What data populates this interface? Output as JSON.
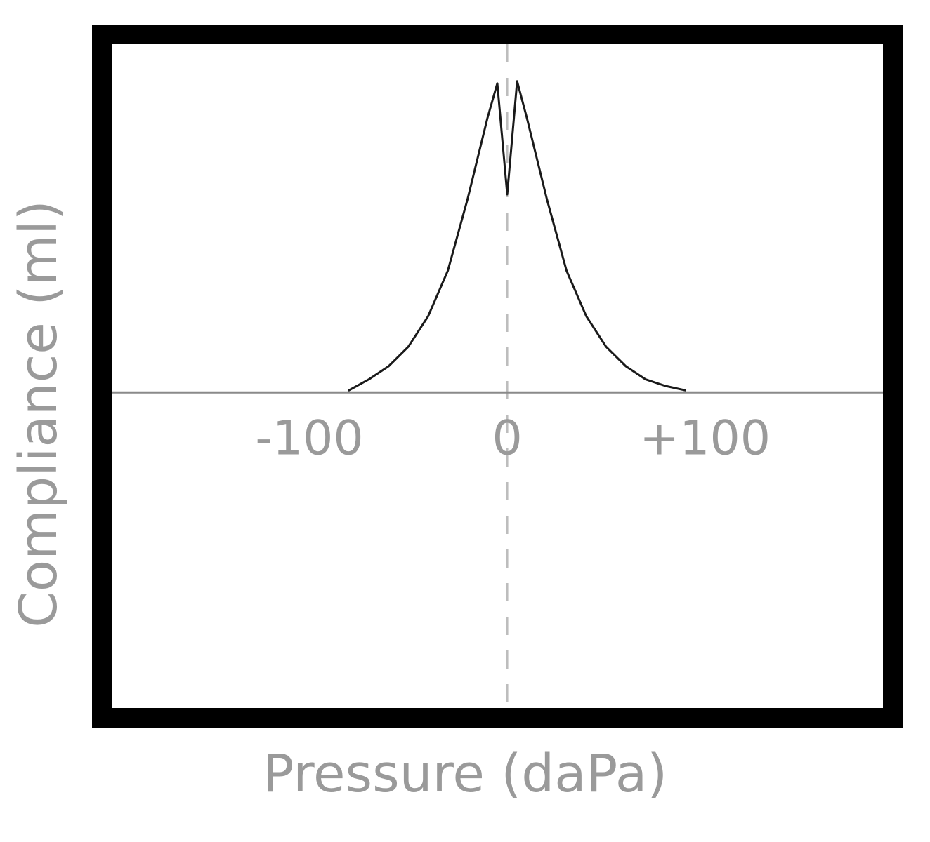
{
  "chart_data": {
    "type": "line",
    "title": "",
    "xlabel": "Pressure (daPa)",
    "ylabel": "Compliance (ml)",
    "xlim": [
      -200,
      190
    ],
    "ylim": [
      -1.45,
      1.6
    ],
    "x_ticks": [
      {
        "value": -100,
        "label": "-100"
      },
      {
        "value": 0,
        "label": "0"
      },
      {
        "value": 100,
        "label": "+100"
      }
    ],
    "reference_line": {
      "x": 0,
      "style": "dashed"
    },
    "baseline": {
      "y": 0
    },
    "grid": false,
    "legend": "none",
    "series": [
      {
        "color": "#1a1a1a",
        "x": [
          -80,
          -70,
          -60,
          -50,
          -40,
          -30,
          -20,
          -10,
          -5,
          0,
          5,
          10,
          20,
          30,
          40,
          50,
          60,
          70,
          80,
          90
        ],
        "y": [
          0.01,
          0.06,
          0.12,
          0.21,
          0.35,
          0.56,
          0.89,
          1.26,
          1.42,
          0.91,
          1.43,
          1.26,
          0.89,
          0.56,
          0.35,
          0.21,
          0.12,
          0.06,
          0.03,
          0.01
        ]
      }
    ]
  }
}
